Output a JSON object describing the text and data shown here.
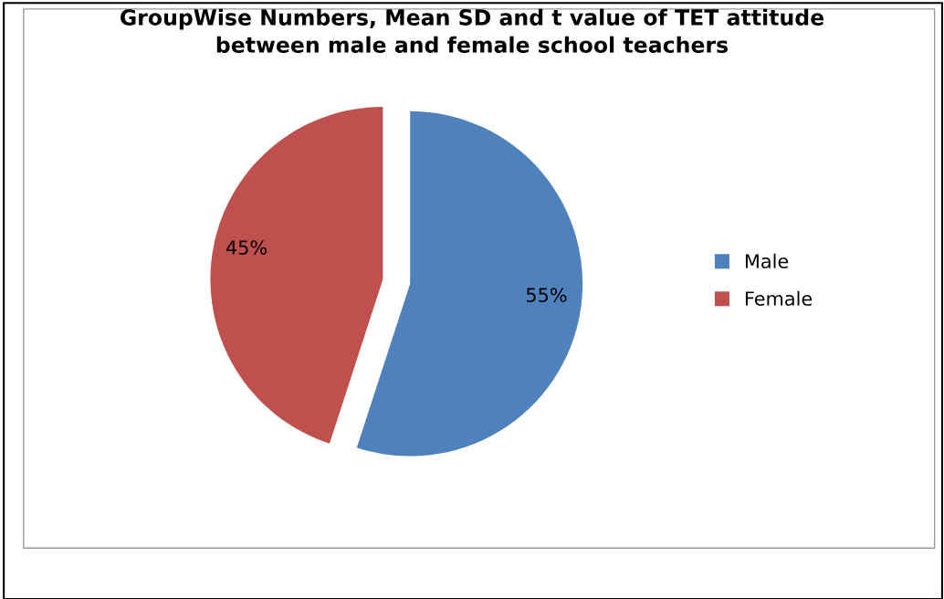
{
  "chart_data": {
    "type": "pie",
    "title": "GroupWise Numbers, Mean SD and t value of TET attitude\nbetween male and female school teachers",
    "categories": [
      "Male",
      "Female"
    ],
    "values": [
      55,
      45
    ],
    "colors": [
      "#4f81bd",
      "#c0504d"
    ],
    "value_labels": [
      "55%",
      "45%"
    ],
    "legend": "right"
  }
}
